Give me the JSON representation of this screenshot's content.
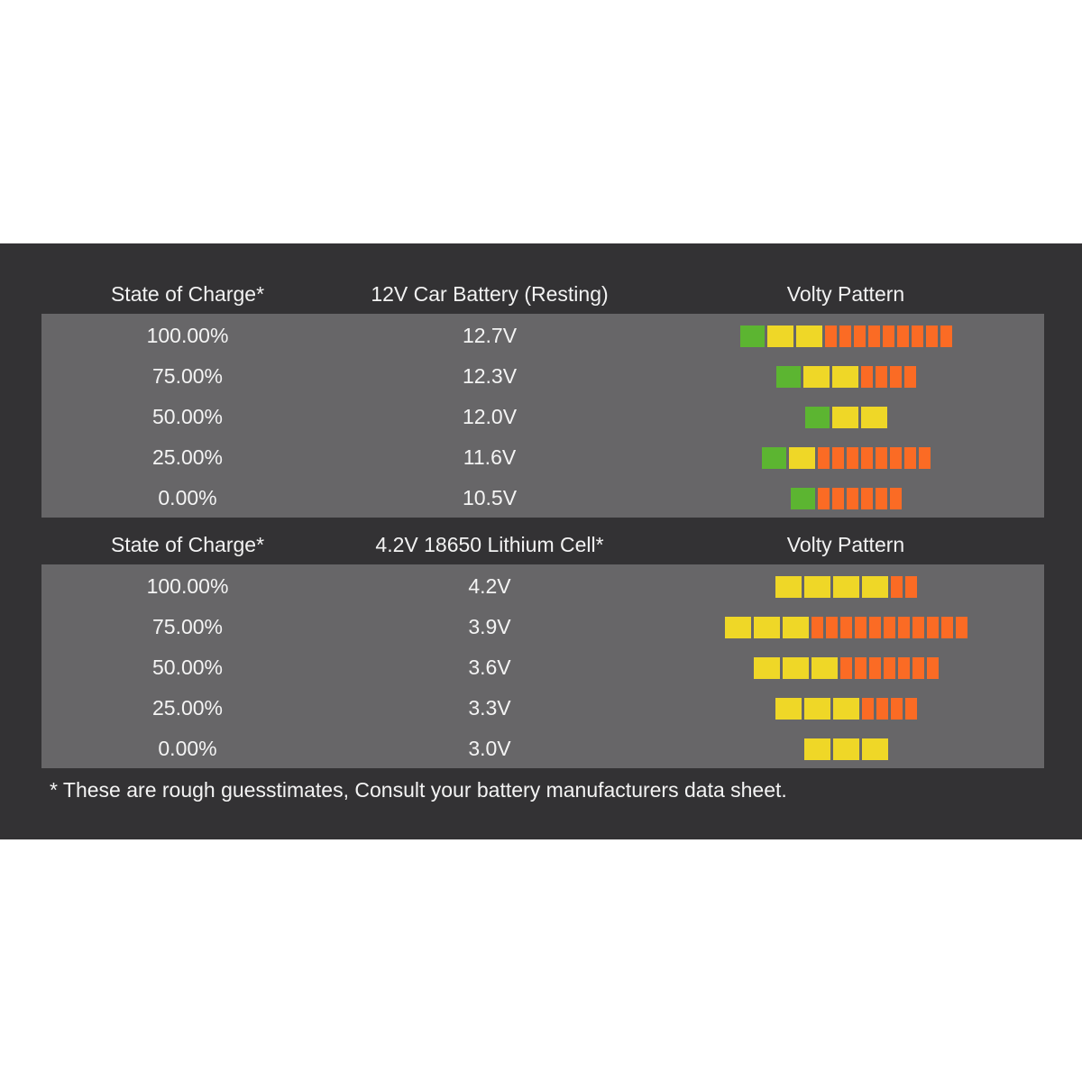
{
  "colors": {
    "panel_bg": "#333234",
    "table_body_bg": "#676668",
    "green": "#5cb531",
    "yellow": "#efd727",
    "orange": "#fb6b24"
  },
  "tables": [
    {
      "headers": [
        "State of Charge*",
        "12V Car Battery (Resting)",
        "Volty Pattern"
      ],
      "rows": [
        {
          "soc": "100.00%",
          "voltage": "12.7V",
          "pattern": {
            "green": 1,
            "yellow": 2,
            "orange": 9
          }
        },
        {
          "soc": "75.00%",
          "voltage": "12.3V",
          "pattern": {
            "green": 1,
            "yellow": 2,
            "orange": 4
          }
        },
        {
          "soc": "50.00%",
          "voltage": "12.0V",
          "pattern": {
            "green": 1,
            "yellow": 2,
            "orange": 0
          }
        },
        {
          "soc": "25.00%",
          "voltage": "11.6V",
          "pattern": {
            "green": 1,
            "yellow": 1,
            "orange": 8
          }
        },
        {
          "soc": "0.00%",
          "voltage": "10.5V",
          "pattern": {
            "green": 1,
            "yellow": 0,
            "orange": 6
          }
        }
      ]
    },
    {
      "headers": [
        "State of Charge*",
        "4.2V 18650 Lithium Cell*",
        "Volty Pattern"
      ],
      "rows": [
        {
          "soc": "100.00%",
          "voltage": "4.2V",
          "pattern": {
            "green": 0,
            "yellow": 4,
            "orange": 2
          }
        },
        {
          "soc": "75.00%",
          "voltage": "3.9V",
          "pattern": {
            "green": 0,
            "yellow": 3,
            "orange": 11
          }
        },
        {
          "soc": "50.00%",
          "voltage": "3.6V",
          "pattern": {
            "green": 0,
            "yellow": 3,
            "orange": 7
          }
        },
        {
          "soc": "25.00%",
          "voltage": "3.3V",
          "pattern": {
            "green": 0,
            "yellow": 3,
            "orange": 4
          }
        },
        {
          "soc": "0.00%",
          "voltage": "3.0V",
          "pattern": {
            "green": 0,
            "yellow": 3,
            "orange": 0
          }
        }
      ]
    }
  ],
  "footnote": "* These are rough guesstimates, Consult your battery manufacturers data sheet."
}
